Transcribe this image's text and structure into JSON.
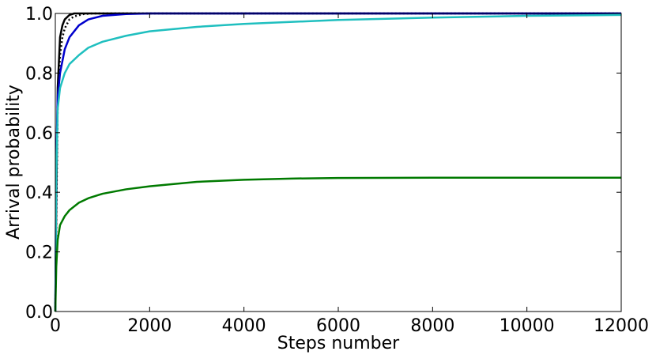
{
  "chart_data": {
    "type": "line",
    "title": "",
    "xlabel": "Steps number",
    "ylabel": "Arrival probability",
    "xlim": [
      0,
      12000
    ],
    "ylim": [
      0.0,
      1.0
    ],
    "x_ticks": [
      "0",
      "2000",
      "4000",
      "6000",
      "8000",
      "10000",
      "12000"
    ],
    "y_ticks": [
      "0.0",
      "0.2",
      "0.4",
      "0.6",
      "0.8",
      "1.0"
    ],
    "grid": false,
    "legend": "none",
    "series": [
      {
        "color": "#000000",
        "style": "solid",
        "x": [
          0,
          20,
          50,
          100,
          150,
          200,
          300,
          400,
          600,
          1000,
          12000
        ],
        "y": [
          0,
          0.35,
          0.75,
          0.92,
          0.96,
          0.98,
          0.995,
          1.0,
          1.0,
          1.0,
          1.0
        ]
      },
      {
        "color": "#000000",
        "style": "dotted",
        "x": [
          0,
          20,
          50,
          100,
          150,
          200,
          300,
          400,
          600,
          800,
          1200,
          12000
        ],
        "y": [
          0,
          0.3,
          0.7,
          0.86,
          0.92,
          0.95,
          0.98,
          0.99,
          0.998,
          1.0,
          1.0,
          1.0
        ]
      },
      {
        "color": "#0000cc",
        "style": "solid",
        "x": [
          0,
          20,
          50,
          100,
          200,
          300,
          500,
          700,
          1000,
          1500,
          2000,
          12000
        ],
        "y": [
          0,
          0.5,
          0.72,
          0.8,
          0.88,
          0.92,
          0.96,
          0.98,
          0.992,
          0.998,
          1.0,
          1.0
        ]
      },
      {
        "color": "#1fbfbf",
        "style": "solid",
        "x": [
          0,
          20,
          50,
          100,
          200,
          300,
          500,
          700,
          1000,
          1500,
          2000,
          3000,
          4000,
          6000,
          8000,
          10000,
          12000
        ],
        "y": [
          0,
          0.45,
          0.68,
          0.75,
          0.8,
          0.83,
          0.86,
          0.885,
          0.905,
          0.925,
          0.94,
          0.955,
          0.965,
          0.978,
          0.986,
          0.992,
          0.995
        ]
      },
      {
        "color": "#007a00",
        "style": "solid",
        "x": [
          0,
          20,
          50,
          100,
          200,
          300,
          500,
          700,
          1000,
          1500,
          2000,
          3000,
          4000,
          5000,
          6000,
          8000,
          12000
        ],
        "y": [
          0,
          0.15,
          0.24,
          0.29,
          0.32,
          0.34,
          0.365,
          0.38,
          0.395,
          0.41,
          0.42,
          0.435,
          0.442,
          0.446,
          0.448,
          0.449,
          0.449
        ]
      }
    ]
  }
}
